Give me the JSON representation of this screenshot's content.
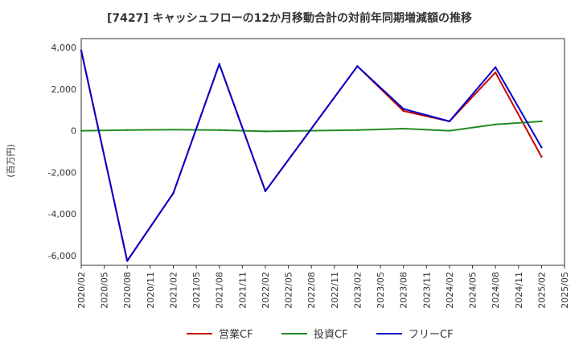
{
  "chart_data": {
    "type": "line",
    "title": "[7427]  キャッシュフローの12か月移動合計の対前年同期増減額の推移",
    "ylabel": "(百万円)",
    "xlabel": "",
    "ylim": [
      -6500,
      4000
    ],
    "yticks": [
      4000,
      2000,
      0,
      -2000,
      -4000,
      -6000
    ],
    "ytick_labels": [
      "4,000",
      "2,000",
      "0",
      "-2,000",
      "-4,000",
      "-6,000"
    ],
    "categories": [
      "2020/02",
      "2020/05",
      "2020/08",
      "2020/11",
      "2021/02",
      "2021/05",
      "2021/08",
      "2021/11",
      "2022/02",
      "2022/05",
      "2022/08",
      "2022/11",
      "2023/02",
      "2023/05",
      "2023/08",
      "2023/11",
      "2024/02",
      "2024/05",
      "2024/08",
      "2024/11",
      "2025/02",
      "2025/05"
    ],
    "grid": true,
    "legend_position": "bottom-center",
    "series": [
      {
        "name": "営業CF",
        "color": "#cc0000",
        "values": [
          3850,
          null,
          -6250,
          null,
          -3000,
          null,
          3200,
          null,
          -2900,
          null,
          null,
          null,
          3100,
          null,
          950,
          null,
          450,
          null,
          2800,
          null,
          -1250,
          null
        ]
      },
      {
        "name": "投資CF",
        "color": "#228b22",
        "values": [
          0,
          null,
          30,
          null,
          50,
          null,
          30,
          null,
          -30,
          null,
          null,
          null,
          30,
          null,
          100,
          null,
          0,
          null,
          300,
          null,
          450,
          null
        ]
      },
      {
        "name": "フリーCF",
        "color": "#0000cc",
        "values": [
          3850,
          null,
          -6250,
          null,
          -3000,
          null,
          3200,
          null,
          -2900,
          null,
          null,
          null,
          3100,
          null,
          1050,
          null,
          450,
          null,
          3050,
          null,
          -800,
          null
        ]
      }
    ]
  }
}
